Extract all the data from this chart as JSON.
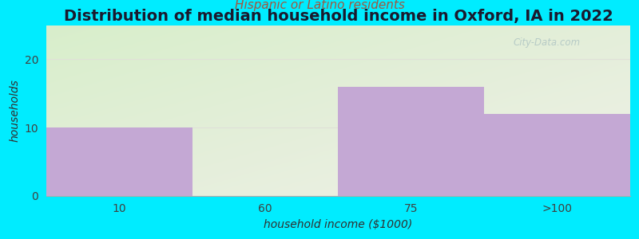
{
  "title": "Distribution of median household income in Oxford, IA in 2022",
  "subtitle": "Hispanic or Latino residents",
  "categories": [
    "10",
    "60",
    "75",
    ">100"
  ],
  "values": [
    10,
    0,
    16,
    12
  ],
  "bar_color": "#c4a8d4",
  "background_outer": "#00ecff",
  "xlabel": "household income ($1000)",
  "ylabel": "households",
  "ylim": [
    0,
    25
  ],
  "yticks": [
    0,
    10,
    20
  ],
  "title_fontsize": 14,
  "title_color": "#1a1a2e",
  "subtitle_fontsize": 11,
  "subtitle_color": "#a05840",
  "axis_label_fontsize": 10,
  "tick_fontsize": 10,
  "watermark": "City-Data.com",
  "grid_color": "#e0e0d8",
  "bg_top_color": "#d8eecb",
  "bg_bottom_color": "#f0f0e8"
}
